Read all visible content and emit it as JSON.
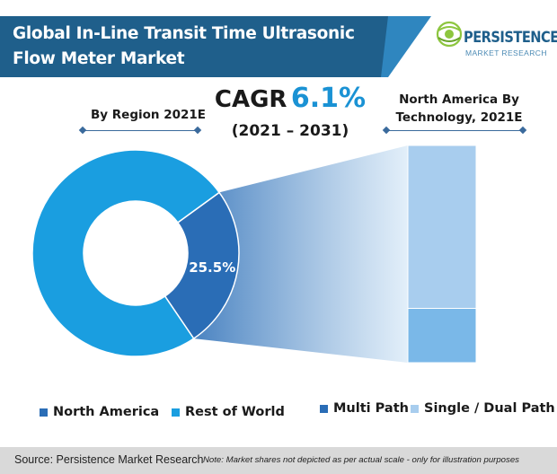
{
  "header": {
    "title_line1": "Global In-Line Transit Time Ultrasonic",
    "title_line2": "Flow Meter Market",
    "logo_name": "PERSISTENCE",
    "logo_sub": "MARKET RESEARCH"
  },
  "cagr": {
    "label": "CAGR",
    "value": "6.1%",
    "period": "(2021 – 2031)"
  },
  "colors": {
    "banner": "#1f5f8b",
    "accent": "#1a92d4",
    "north_america": "#2a6db6",
    "rest_of_world": "#1a9ee0",
    "multi_path": "#7ab8e8",
    "single_dual_path": "#a8cdee"
  },
  "footer": {
    "source": "Source: Persistence Market Research",
    "note": "Note: Market shares not depicted as per actual scale - only for illustration purposes"
  },
  "chart_data": [
    {
      "type": "pie",
      "title": "By Region 2021E",
      "categories": [
        "North America",
        "Rest of World"
      ],
      "values": [
        25.5,
        74.5
      ],
      "unit": "%",
      "data_labels": [
        "25.5%",
        ""
      ],
      "legend": "bottom"
    },
    {
      "type": "bar",
      "stacked": true,
      "title": "North America By Technology, 2021E",
      "title_lines": [
        "North America By",
        "Technology, 2021E"
      ],
      "categories": [
        "North America"
      ],
      "series": [
        {
          "name": "Multi Path",
          "values": [
            25
          ]
        },
        {
          "name": "Single / Dual Path",
          "values": [
            75
          ]
        }
      ],
      "legend": "bottom"
    }
  ]
}
